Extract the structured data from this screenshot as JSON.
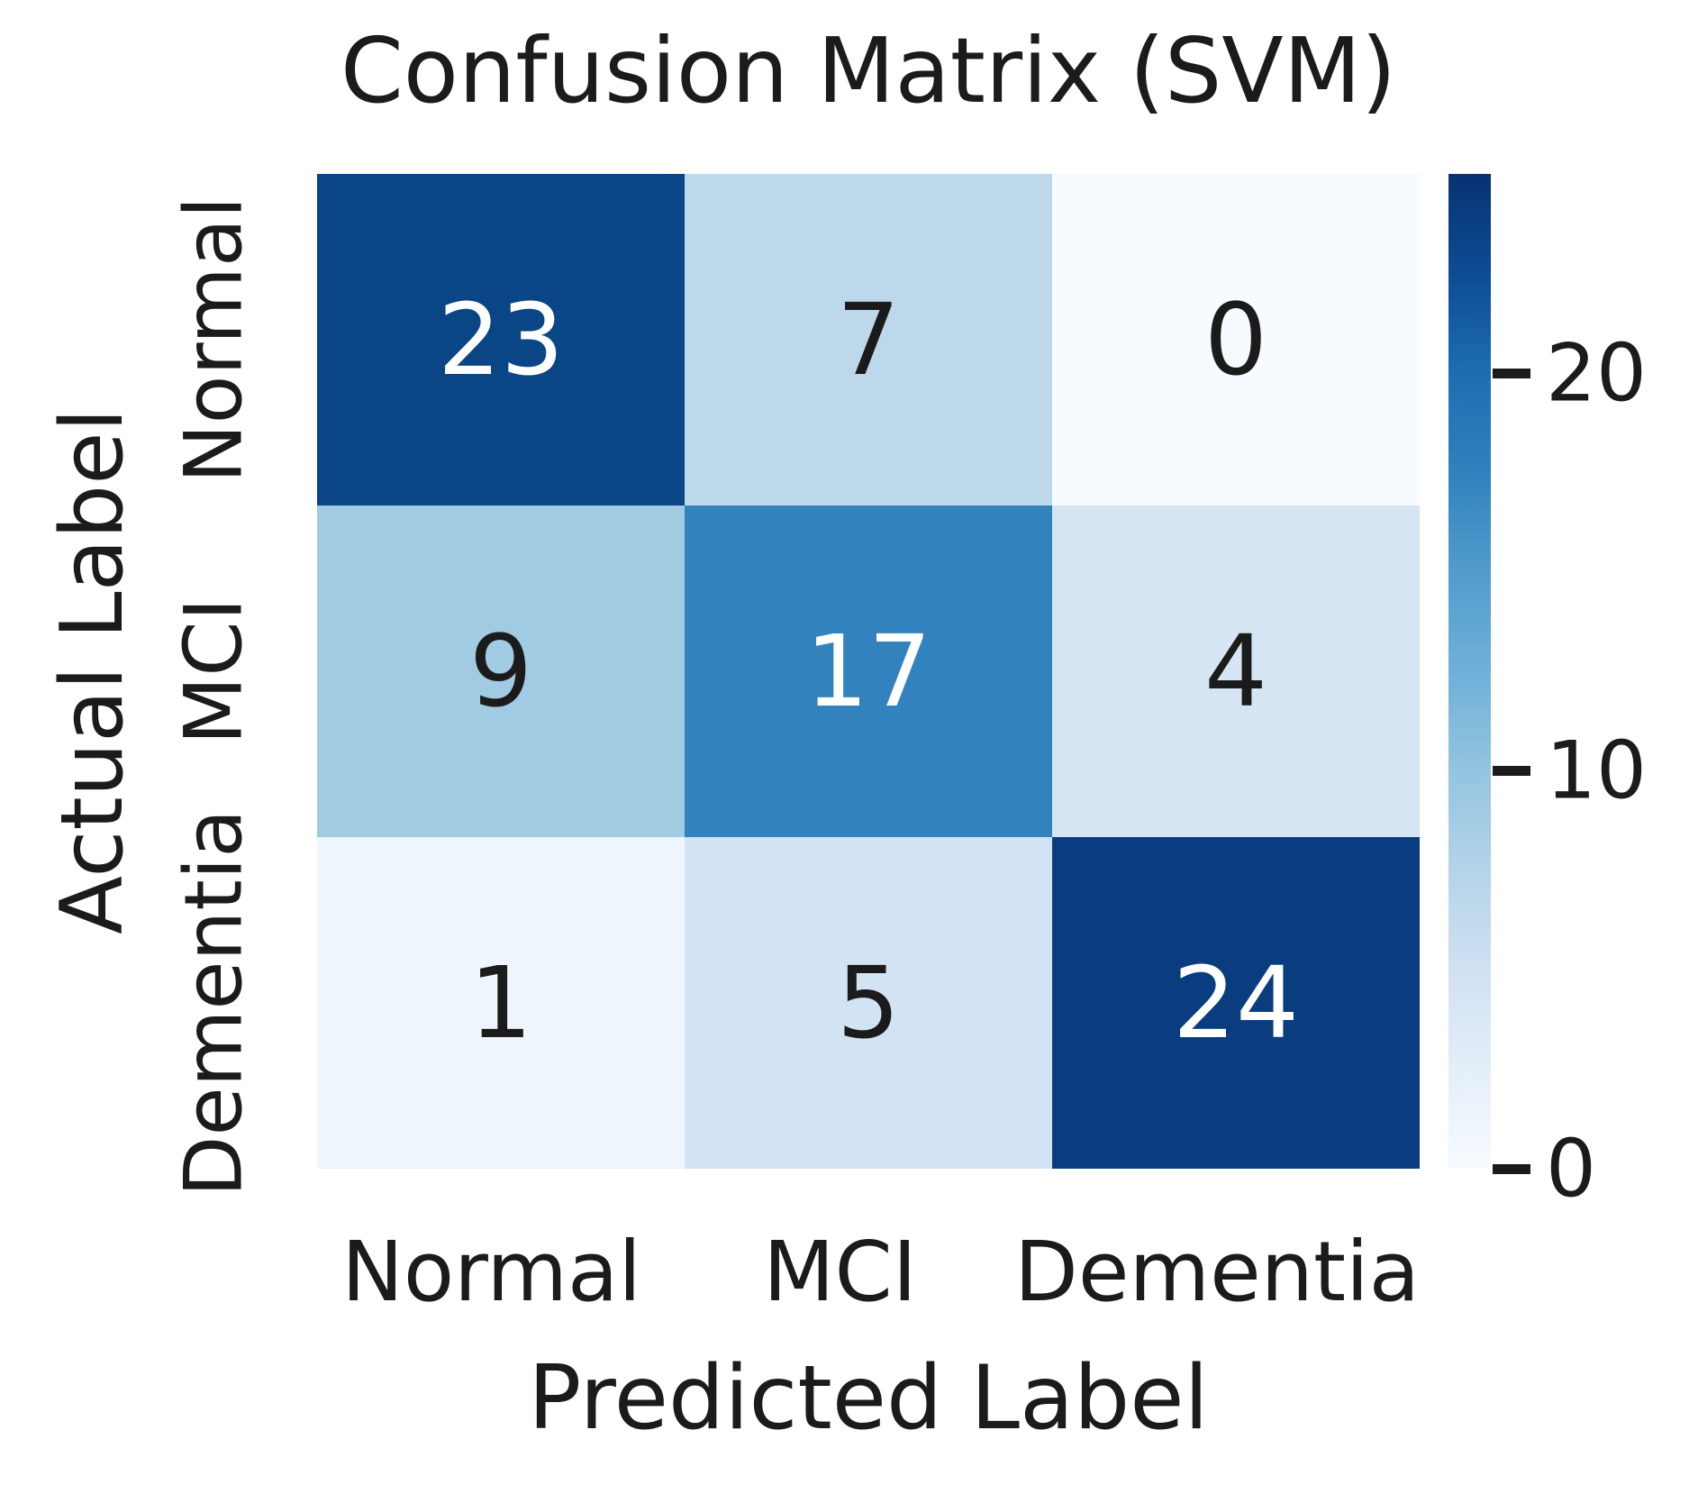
{
  "chart_data": {
    "type": "heatmap",
    "title": "Confusion Matrix (SVM)",
    "xlabel": "Predicted Label",
    "ylabel": "Actual Label",
    "x_categories": [
      "Normal",
      "MCI",
      "Dementia"
    ],
    "y_categories": [
      "Normal",
      "MCI",
      "Dementia"
    ],
    "matrix": [
      [
        23,
        7,
        0
      ],
      [
        9,
        17,
        4
      ],
      [
        1,
        5,
        24
      ]
    ],
    "colormap": "Blues",
    "vmin": 0,
    "vmax": 24,
    "colorbar_ticks": [
      20,
      10,
      0
    ],
    "colorbar_position": "right",
    "grid": false,
    "annotations": true,
    "cell_colors": [
      [
        "#0a4586",
        "#bdd7eb",
        "#f7fbff"
      ],
      [
        "#a1cbe2",
        "#3282be",
        "#d5e5f4"
      ],
      [
        "#eff5fc",
        "#d2e3f3",
        "#0a3d80"
      ]
    ],
    "cell_text_colors": [
      [
        "#ffffff",
        "#1b1b1b",
        "#1b1b1b"
      ],
      [
        "#1b1b1b",
        "#ffffff",
        "#1b1b1b"
      ],
      [
        "#1b1b1b",
        "#1b1b1b",
        "#ffffff"
      ]
    ],
    "colorbar_gradient_top_to_bottom": [
      "#083271",
      "#0d4c94",
      "#1e6db2",
      "#3181bd",
      "#519ccc",
      "#6fb0d8",
      "#94c4df",
      "#b4d3e9",
      "#d0e1f2",
      "#e4eef8",
      "#f7fbff"
    ],
    "text_color": "#1b1b1b",
    "background_color": "#ffffff"
  }
}
